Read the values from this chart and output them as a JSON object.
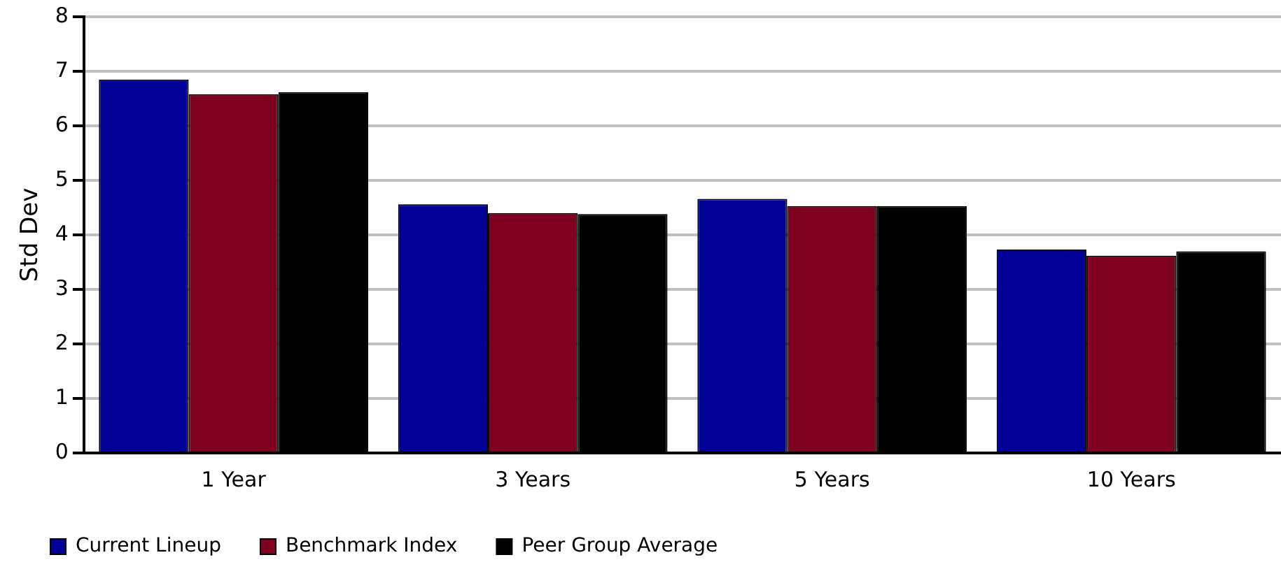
{
  "chart_data": {
    "type": "bar",
    "ylabel": "Std Dev",
    "categories": [
      "1 Year",
      "3 Years",
      "5 Years",
      "10 Years"
    ],
    "series": [
      {
        "name": "Current Lineup",
        "color": "#000099",
        "values": [
          6.85,
          4.56,
          4.66,
          3.73
        ]
      },
      {
        "name": "Benchmark Index",
        "color": "#800020",
        "values": [
          6.58,
          4.4,
          4.53,
          3.62
        ]
      },
      {
        "name": "Peer Group Average",
        "color": "#000000",
        "values": [
          6.62,
          4.38,
          4.53,
          3.7
        ]
      }
    ],
    "ylim": [
      0,
      8
    ],
    "yticks": [
      0,
      1,
      2,
      3,
      4,
      5,
      6,
      7,
      8
    ],
    "grid": "y",
    "legend": "bottom left"
  }
}
